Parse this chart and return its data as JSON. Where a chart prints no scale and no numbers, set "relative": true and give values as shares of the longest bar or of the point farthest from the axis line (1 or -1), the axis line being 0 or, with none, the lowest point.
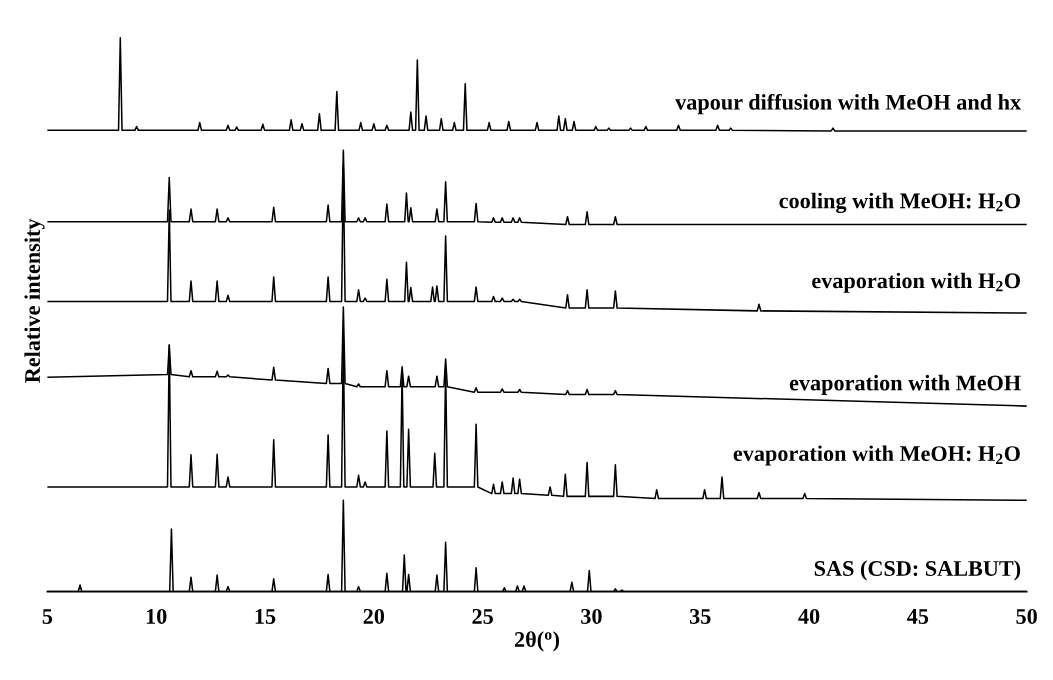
{
  "chart_data": {
    "type": "line",
    "relative": true,
    "xlabel": "2θ($^{o}$)",
    "ylabel": "Relative intensity",
    "xlim": [
      5,
      50
    ],
    "xticks": [
      5,
      10,
      15,
      20,
      25,
      30,
      35,
      40,
      45,
      50
    ],
    "marker": "none",
    "line_style": "solid",
    "series": [
      {
        "name": "vapour diffusion with MeOH and hx",
        "color": "#000000",
        "x": [
          5,
          8.27,
          8.35,
          8.43,
          9.02,
          9.1,
          9.18,
          11.92,
          12.0,
          12.08,
          13.22,
          13.3,
          13.38,
          13.62,
          13.7,
          13.78,
          14.82,
          14.9,
          14.98,
          16.12,
          16.2,
          16.28,
          16.62,
          16.7,
          16.78,
          17.42,
          17.5,
          17.58,
          18.22,
          18.3,
          18.38,
          19.32,
          19.4,
          19.48,
          19.92,
          20.0,
          20.08,
          20.52,
          20.6,
          20.68,
          21.62,
          21.7,
          21.78,
          21.92,
          22.0,
          22.08,
          22.32,
          22.4,
          22.48,
          23.02,
          23.1,
          23.18,
          23.62,
          23.7,
          23.78,
          24.12,
          24.2,
          24.28,
          25.22,
          25.3,
          25.38,
          26.12,
          26.2,
          26.28,
          27.42,
          27.5,
          27.58,
          28.42,
          28.5,
          28.58,
          28.72,
          28.8,
          28.88,
          29.12,
          29.2,
          29.28,
          30.12,
          30.2,
          30.28,
          30.72,
          30.8,
          30.88,
          31.72,
          31.8,
          31.88,
          32.42,
          32.5,
          32.58,
          33.92,
          34.0,
          34.08,
          35.72,
          35.8,
          35.88,
          36.32,
          36.4,
          36.48,
          41.02,
          41.1,
          41.18,
          50
        ],
        "values": [
          0.833,
          0.833,
          1.0,
          0.833,
          0.833,
          0.84,
          0.833,
          0.833,
          0.847,
          0.833,
          0.833,
          0.842,
          0.833,
          0.833,
          0.839,
          0.833,
          0.833,
          0.844,
          0.833,
          0.833,
          0.852,
          0.833,
          0.833,
          0.845,
          0.833,
          0.833,
          0.863,
          0.833,
          0.833,
          0.903,
          0.833,
          0.833,
          0.847,
          0.833,
          0.833,
          0.845,
          0.833,
          0.833,
          0.842,
          0.833,
          0.833,
          0.866,
          0.833,
          0.833,
          0.96,
          0.833,
          0.833,
          0.859,
          0.833,
          0.833,
          0.854,
          0.833,
          0.833,
          0.847,
          0.833,
          0.833,
          0.917,
          0.833,
          0.833,
          0.847,
          0.833,
          0.833,
          0.849,
          0.833,
          0.833,
          0.847,
          0.833,
          0.833,
          0.859,
          0.833,
          0.833,
          0.854,
          0.833,
          0.833,
          0.849,
          0.833,
          0.833,
          0.84,
          0.833,
          0.833,
          0.837,
          0.833,
          0.833,
          0.837,
          0.833,
          0.833,
          0.84,
          0.833,
          0.833,
          0.842,
          0.833,
          0.833,
          0.842,
          0.833,
          0.833,
          0.837,
          0.833,
          0.832,
          0.837,
          0.832,
          0.832
        ]
      },
      {
        "name": "cooling with MeOH: H$_{2}$O",
        "color": "#000000",
        "x": [
          5,
          10.52,
          10.6,
          10.68,
          11.52,
          11.6,
          11.68,
          12.72,
          12.8,
          12.88,
          13.22,
          13.3,
          13.38,
          15.32,
          15.4,
          15.48,
          17.82,
          17.9,
          17.98,
          18.52,
          18.6,
          18.68,
          19.22,
          19.3,
          19.38,
          19.52,
          19.6,
          19.68,
          20.52,
          20.6,
          20.68,
          21.42,
          21.5,
          21.58,
          21.62,
          21.7,
          21.78,
          22.82,
          22.9,
          22.98,
          23.22,
          23.3,
          23.38,
          24.62,
          24.7,
          24.78,
          25.42,
          25.5,
          25.58,
          25.82,
          25.9,
          25.98,
          26.32,
          26.4,
          26.48,
          26.62,
          26.7,
          26.78,
          28.82,
          28.9,
          28.98,
          29.72,
          29.8,
          29.88,
          31.02,
          31.1,
          31.18,
          50
        ],
        "values": [
          0.668,
          0.668,
          0.748,
          0.668,
          0.668,
          0.691,
          0.668,
          0.668,
          0.691,
          0.668,
          0.668,
          0.675,
          0.668,
          0.668,
          0.694,
          0.668,
          0.668,
          0.698,
          0.668,
          0.668,
          0.797,
          0.668,
          0.668,
          0.675,
          0.668,
          0.668,
          0.675,
          0.668,
          0.668,
          0.7,
          0.668,
          0.668,
          0.72,
          0.668,
          0.668,
          0.693,
          0.668,
          0.668,
          0.691,
          0.668,
          0.668,
          0.74,
          0.668,
          0.668,
          0.701,
          0.668,
          0.667,
          0.675,
          0.667,
          0.667,
          0.675,
          0.667,
          0.667,
          0.675,
          0.667,
          0.667,
          0.675,
          0.667,
          0.663,
          0.677,
          0.663,
          0.663,
          0.686,
          0.663,
          0.663,
          0.677,
          0.663,
          0.663
        ]
      },
      {
        "name": "evaporation with H$_{2}$O",
        "color": "#000000",
        "x": [
          5,
          10.52,
          10.6,
          10.68,
          11.52,
          11.6,
          11.68,
          12.72,
          12.8,
          12.88,
          13.22,
          13.3,
          13.38,
          15.32,
          15.4,
          15.48,
          17.82,
          17.9,
          17.98,
          18.52,
          18.6,
          18.68,
          19.22,
          19.3,
          19.38,
          19.52,
          19.6,
          19.68,
          20.52,
          20.6,
          20.68,
          21.42,
          21.5,
          21.58,
          21.62,
          21.7,
          21.78,
          22.62,
          22.7,
          22.78,
          22.82,
          22.9,
          22.98,
          23.22,
          23.3,
          23.38,
          24.62,
          24.7,
          24.78,
          25.42,
          25.5,
          25.58,
          25.82,
          25.9,
          25.98,
          26.32,
          26.4,
          26.48,
          26.62,
          26.7,
          26.78,
          28.82,
          28.9,
          28.98,
          29.72,
          29.8,
          29.88,
          31.02,
          31.1,
          31.18,
          37.62,
          37.7,
          37.78,
          50
        ],
        "values": [
          0.524,
          0.524,
          0.689,
          0.524,
          0.524,
          0.561,
          0.524,
          0.524,
          0.561,
          0.524,
          0.524,
          0.535,
          0.524,
          0.524,
          0.568,
          0.524,
          0.524,
          0.568,
          0.524,
          0.524,
          0.767,
          0.524,
          0.524,
          0.545,
          0.524,
          0.524,
          0.53,
          0.524,
          0.524,
          0.564,
          0.524,
          0.524,
          0.595,
          0.524,
          0.524,
          0.549,
          0.524,
          0.524,
          0.55,
          0.524,
          0.524,
          0.552,
          0.524,
          0.524,
          0.642,
          0.524,
          0.524,
          0.55,
          0.524,
          0.524,
          0.533,
          0.524,
          0.524,
          0.53,
          0.524,
          0.524,
          0.528,
          0.524,
          0.524,
          0.528,
          0.524,
          0.512,
          0.536,
          0.512,
          0.512,
          0.545,
          0.512,
          0.512,
          0.543,
          0.512,
          0.507,
          0.519,
          0.507,
          0.503
        ]
      },
      {
        "name": "evaporation with MeOH",
        "color": "#000000",
        "x": [
          5,
          10.52,
          10.6,
          10.68,
          11.52,
          11.6,
          11.68,
          12.72,
          12.8,
          12.88,
          13.22,
          13.3,
          13.38,
          15.32,
          15.4,
          15.48,
          17.82,
          17.9,
          17.98,
          18.52,
          18.6,
          18.68,
          19.22,
          19.3,
          19.38,
          20.52,
          20.6,
          20.68,
          21.22,
          21.3,
          21.38,
          21.52,
          21.6,
          21.68,
          22.82,
          22.9,
          22.98,
          23.22,
          23.3,
          23.38,
          24.62,
          24.7,
          24.78,
          25.82,
          25.9,
          25.98,
          26.62,
          26.7,
          26.78,
          28.82,
          28.9,
          28.98,
          29.72,
          29.8,
          29.88,
          31.02,
          31.1,
          31.18,
          50
        ],
        "values": [
          0.387,
          0.392,
          0.444,
          0.392,
          0.388,
          0.399,
          0.388,
          0.388,
          0.398,
          0.388,
          0.388,
          0.391,
          0.388,
          0.382,
          0.405,
          0.382,
          0.376,
          0.403,
          0.376,
          0.376,
          0.514,
          0.376,
          0.37,
          0.375,
          0.37,
          0.37,
          0.399,
          0.37,
          0.37,
          0.406,
          0.37,
          0.37,
          0.389,
          0.37,
          0.37,
          0.389,
          0.37,
          0.37,
          0.42,
          0.37,
          0.36,
          0.368,
          0.36,
          0.36,
          0.366,
          0.36,
          0.36,
          0.365,
          0.36,
          0.356,
          0.363,
          0.356,
          0.356,
          0.365,
          0.356,
          0.356,
          0.363,
          0.356,
          0.335
        ]
      },
      {
        "name": "evaporation with MeOH: H$_{2}$O",
        "color": "#000000",
        "x": [
          5,
          10.52,
          10.6,
          10.68,
          11.52,
          11.6,
          11.68,
          12.72,
          12.8,
          12.88,
          13.22,
          13.3,
          13.38,
          15.32,
          15.4,
          15.48,
          17.82,
          17.9,
          17.98,
          18.52,
          18.6,
          18.68,
          19.22,
          19.3,
          19.38,
          19.52,
          19.6,
          19.68,
          20.52,
          20.6,
          20.68,
          21.22,
          21.3,
          21.38,
          21.52,
          21.6,
          21.68,
          22.72,
          22.8,
          22.88,
          23.22,
          23.3,
          23.38,
          24.62,
          24.7,
          24.78,
          25.42,
          25.5,
          25.58,
          25.82,
          25.9,
          25.98,
          26.32,
          26.4,
          26.48,
          26.62,
          26.7,
          26.78,
          28.02,
          28.1,
          28.18,
          28.72,
          28.8,
          28.88,
          29.72,
          29.8,
          29.88,
          31.02,
          31.1,
          31.18,
          32.92,
          33.0,
          33.08,
          35.12,
          35.2,
          35.28,
          35.92,
          36.0,
          36.08,
          37.62,
          37.7,
          37.78,
          39.72,
          39.8,
          39.88,
          50
        ],
        "values": [
          0.189,
          0.189,
          0.446,
          0.189,
          0.189,
          0.247,
          0.189,
          0.189,
          0.248,
          0.189,
          0.189,
          0.207,
          0.189,
          0.189,
          0.274,
          0.189,
          0.189,
          0.283,
          0.189,
          0.189,
          0.455,
          0.189,
          0.189,
          0.21,
          0.189,
          0.189,
          0.198,
          0.189,
          0.189,
          0.29,
          0.189,
          0.189,
          0.394,
          0.189,
          0.189,
          0.293,
          0.189,
          0.189,
          0.25,
          0.189,
          0.189,
          0.403,
          0.189,
          0.189,
          0.302,
          0.189,
          0.177,
          0.194,
          0.177,
          0.177,
          0.198,
          0.177,
          0.177,
          0.205,
          0.177,
          0.177,
          0.203,
          0.177,
          0.174,
          0.189,
          0.174,
          0.172,
          0.212,
          0.172,
          0.172,
          0.233,
          0.172,
          0.172,
          0.229,
          0.172,
          0.168,
          0.184,
          0.168,
          0.168,
          0.184,
          0.168,
          0.168,
          0.207,
          0.168,
          0.168,
          0.179,
          0.168,
          0.168,
          0.177,
          0.168,
          0.165
        ]
      },
      {
        "name": "SAS (CSD: SALBUT)",
        "color": "#000000",
        "x": [
          5,
          6.42,
          6.5,
          6.58,
          10.62,
          10.7,
          10.78,
          11.52,
          11.6,
          11.68,
          12.72,
          12.8,
          12.88,
          13.22,
          13.3,
          13.38,
          15.32,
          15.4,
          15.48,
          17.82,
          17.9,
          17.98,
          18.52,
          18.6,
          18.68,
          19.22,
          19.3,
          19.38,
          20.52,
          20.6,
          20.68,
          21.32,
          21.4,
          21.48,
          21.52,
          21.6,
          21.68,
          22.82,
          22.9,
          22.98,
          23.22,
          23.3,
          23.38,
          24.62,
          24.7,
          24.78,
          25.92,
          26.0,
          26.08,
          26.52,
          26.6,
          26.68,
          26.82,
          26.9,
          26.98,
          29.02,
          29.1,
          29.18,
          29.82,
          29.9,
          29.98,
          31.02,
          31.1,
          31.18,
          31.32,
          31.4,
          31.48,
          50
        ],
        "values": [
          0,
          0,
          0.012,
          0,
          0,
          0.113,
          0,
          0,
          0.026,
          0,
          0,
          0.03,
          0,
          0,
          0.009,
          0,
          0,
          0.023,
          0,
          0,
          0.031,
          0,
          0,
          0.165,
          0,
          0,
          0.009,
          0,
          0,
          0.033,
          0,
          0,
          0.066,
          0,
          0,
          0.031,
          0,
          0,
          0.03,
          0,
          0,
          0.089,
          0,
          0,
          0.043,
          0,
          0,
          0.007,
          0,
          0,
          0.01,
          0,
          0,
          0.01,
          0,
          0,
          0.017,
          0,
          0,
          0.038,
          0,
          0,
          0.005,
          0,
          0,
          0.003,
          0,
          0
        ]
      }
    ]
  }
}
